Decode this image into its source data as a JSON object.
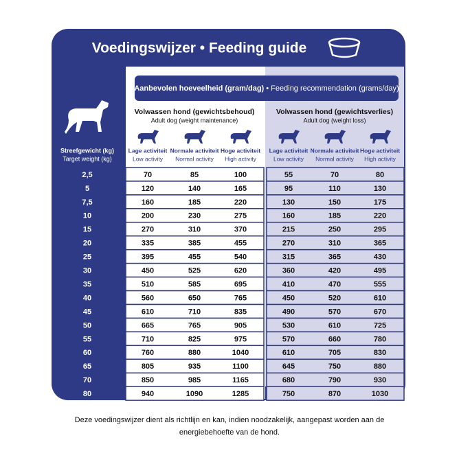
{
  "header": {
    "title": "Voedingswijzer • Feeding guide"
  },
  "table": {
    "band": {
      "bold": "Aanbevolen hoeveelheid (gram/dag)",
      "normal": "• Feeding recommendation (grams/day)"
    },
    "weight_header": {
      "nl": "Streefgewicht (kg)",
      "en": "Target weight (kg)"
    },
    "groups": [
      {
        "title": "Volwassen hond (gewichtsbehoud)",
        "subtitle": "Adult dog (weight maintenance)",
        "activities": [
          {
            "nl": "Lage activiteit",
            "en": "Low activity"
          },
          {
            "nl": "Normale activiteit",
            "en": "Normal activity"
          },
          {
            "nl": "Hoge activiteit",
            "en": "High activity"
          }
        ]
      },
      {
        "title": "Volwassen hond (gewichtsverlies)",
        "subtitle": "Adult dog (weight loss)",
        "activities": [
          {
            "nl": "Lage activiteit",
            "en": "Low activity"
          },
          {
            "nl": "Normale activiteit",
            "en": "Normal activity"
          },
          {
            "nl": "Hoge activiteit",
            "en": "High activity"
          }
        ]
      }
    ],
    "rows": [
      [
        "2,5",
        "70",
        "85",
        "100",
        "55",
        "70",
        "80"
      ],
      [
        "5",
        "120",
        "140",
        "165",
        "95",
        "110",
        "130"
      ],
      [
        "7,5",
        "160",
        "185",
        "220",
        "130",
        "150",
        "175"
      ],
      [
        "10",
        "200",
        "230",
        "275",
        "160",
        "185",
        "220"
      ],
      [
        "15",
        "270",
        "310",
        "370",
        "215",
        "250",
        "295"
      ],
      [
        "20",
        "335",
        "385",
        "455",
        "270",
        "310",
        "365"
      ],
      [
        "25",
        "395",
        "455",
        "540",
        "315",
        "365",
        "430"
      ],
      [
        "30",
        "450",
        "525",
        "620",
        "360",
        "420",
        "495"
      ],
      [
        "35",
        "510",
        "585",
        "695",
        "410",
        "470",
        "555"
      ],
      [
        "40",
        "560",
        "650",
        "765",
        "450",
        "520",
        "610"
      ],
      [
        "45",
        "610",
        "710",
        "835",
        "490",
        "570",
        "670"
      ],
      [
        "50",
        "665",
        "765",
        "905",
        "530",
        "610",
        "725"
      ],
      [
        "55",
        "710",
        "825",
        "975",
        "570",
        "660",
        "780"
      ],
      [
        "60",
        "760",
        "880",
        "1040",
        "610",
        "705",
        "830"
      ],
      [
        "65",
        "805",
        "935",
        "1100",
        "645",
        "750",
        "880"
      ],
      [
        "70",
        "850",
        "985",
        "1165",
        "680",
        "790",
        "930"
      ],
      [
        "80",
        "940",
        "1090",
        "1285",
        "750",
        "870",
        "1030"
      ]
    ]
  },
  "footer": {
    "lines": [
      "Deze voedingswijzer dient als richtlijn en kan, indien noodzakelijk, aangepast worden aan de",
      "energiebehoefte van de hond."
    ]
  }
}
